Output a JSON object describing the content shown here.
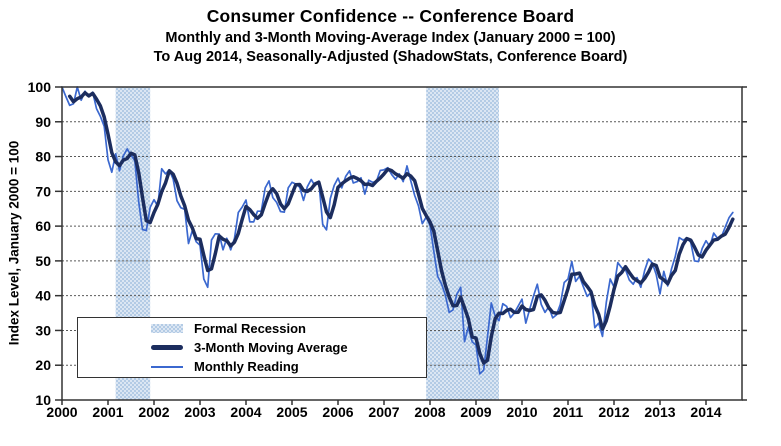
{
  "header": {
    "title": "Consumer Confidence -- Conference Board",
    "subtitle1": "Monthly and 3-Month Moving-Average Index (January 2000 = 100)",
    "subtitle2": "To Aug 2014, Seasonally-Adjusted (ShadowStats, Conference Board)"
  },
  "axes": {
    "y_label": "Index Level, January 2000 = 100",
    "y_ticks": [
      100,
      90,
      80,
      70,
      60,
      50,
      40,
      30,
      20,
      10
    ],
    "x_ticks": [
      2000,
      2001,
      2002,
      2003,
      2004,
      2005,
      2006,
      2007,
      2008,
      2009,
      2010,
      2011,
      2012,
      2013,
      2014
    ]
  },
  "legend": {
    "items": [
      {
        "label": "Formal Recession",
        "swatch": "recession-band"
      },
      {
        "label": "3-Month Moving Average",
        "swatch": "thick-line"
      },
      {
        "label": "Monthly Reading",
        "swatch": "thin-line"
      }
    ]
  },
  "chart_data": {
    "type": "line",
    "title": "Consumer Confidence -- Conference Board",
    "xlabel": "",
    "ylabel": "Index Level, January 2000 = 100",
    "ylim": [
      10,
      100
    ],
    "x_start": "2000-01",
    "x_end": "2014-08",
    "grid": "horizontal dotted",
    "legend_position": "inside bottom-left",
    "recession_bands": [
      {
        "start": "2001-03",
        "end": "2001-11"
      },
      {
        "start": "2007-12",
        "end": "2009-06"
      }
    ],
    "series": [
      {
        "name": "Monthly Reading",
        "style": "thin",
        "color": "#3b68cf",
        "frequency": "monthly",
        "values": [
          100.0,
          97.3,
          94.7,
          95.2,
          100.0,
          96.2,
          98.8,
          97.3,
          98.5,
          93.8,
          91.6,
          88.7,
          79.1,
          75.5,
          80.8,
          75.9,
          80.2,
          82.2,
          80.4,
          78.8,
          67.0,
          59.0,
          58.7,
          65.4,
          67.6,
          65.7,
          76.5,
          75.0,
          76.2,
          73.5,
          67.3,
          65.3,
          64.8,
          55.0,
          58.7,
          55.5,
          54.5,
          44.8,
          42.4,
          56.0,
          57.8,
          57.7,
          53.2,
          56.5,
          53.2,
          56.5,
          63.9,
          65.5,
          67.5,
          61.2,
          61.2,
          64.3,
          64.3,
          71.0,
          73.0,
          68.2,
          66.8,
          64.2,
          64.0,
          71.0,
          72.6,
          72.1,
          71.2,
          67.4,
          71.3,
          73.4,
          71.6,
          72.9,
          60.5,
          58.9,
          67.9,
          71.7,
          73.8,
          71.0,
          74.3,
          75.9,
          72.4,
          72.8,
          73.9,
          69.2,
          73.2,
          72.6,
          72.8,
          76.0,
          76.2,
          76.8,
          74.8,
          73.5,
          75.0,
          72.8,
          77.3,
          73.0,
          68.8,
          65.8,
          60.7,
          62.6,
          60.3,
          52.8,
          45.5,
          43.4,
          40.2,
          35.2,
          35.9,
          40.4,
          42.4,
          26.8,
          30.9,
          26.7,
          25.8,
          17.5,
          18.6,
          28.2,
          37.9,
          34.1,
          32.8,
          37.7,
          36.9,
          33.7,
          35.0,
          37.0,
          39.0,
          32.1,
          36.1,
          39.9,
          43.3,
          37.5,
          35.2,
          36.8,
          33.6,
          34.5,
          37.5,
          43.8,
          44.8,
          49.8,
          44.1,
          45.6,
          42.6,
          39.8,
          40.9,
          30.8,
          32.1,
          28.3,
          38.1,
          44.8,
          42.5,
          49.5,
          48.0,
          47.5,
          44.5,
          43.3,
          45.2,
          42.4,
          47.3,
          50.5,
          49.4,
          46.1,
          40.5,
          47.0,
          42.8,
          47.7,
          51.3,
          56.7,
          56.0,
          56.5,
          55.4,
          50.0,
          49.8,
          53.6,
          55.8,
          54.1,
          58.0,
          56.5,
          56.8,
          59.7,
          62.4,
          63.9
        ]
      },
      {
        "name": "3-Month Moving Average",
        "style": "thick",
        "color": "#1c2d5e",
        "derived_from": "Monthly Reading",
        "derivation": "trailing 3-month mean"
      }
    ],
    "colors": {
      "recession_fill": "#b3cbe5",
      "recession_fill_alt": "#dbe6f3",
      "grid": "#595959",
      "axis": "#333333",
      "monthly_line": "#3b68cf",
      "moving_average_line": "#1c2d5e"
    }
  }
}
